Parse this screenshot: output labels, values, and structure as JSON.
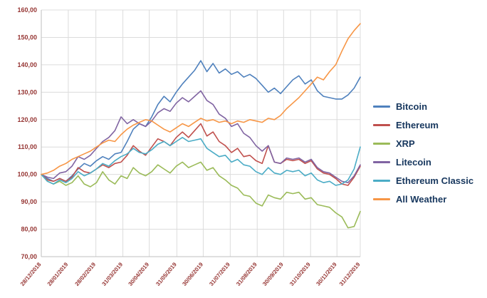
{
  "page": {
    "background": "#ffffff"
  },
  "legend": {
    "position": "right",
    "text_color": "#17375E"
  },
  "chart_data": {
    "type": "line",
    "title": "",
    "xlabel": "",
    "ylabel": "",
    "ylim": [
      70,
      160
    ],
    "grid": true,
    "gridline_color": "#dcdcdc",
    "axis_line_color": "#bfbfbf",
    "axis_label_color": "#963634",
    "legend_position": "right",
    "y_ticks": [
      {
        "value": 70,
        "label": "70,00"
      },
      {
        "value": 80,
        "label": "80,00"
      },
      {
        "value": 90,
        "label": "90,00"
      },
      {
        "value": 100,
        "label": "100,00"
      },
      {
        "value": 110,
        "label": "110,00"
      },
      {
        "value": 120,
        "label": "120,00"
      },
      {
        "value": 130,
        "label": "130,00"
      },
      {
        "value": 140,
        "label": "140,00"
      },
      {
        "value": 150,
        "label": "150,00"
      },
      {
        "value": 160,
        "label": "160,00"
      }
    ],
    "x_ticks": [
      {
        "label": "28/12/2018",
        "pos": 0
      },
      {
        "label": "28/01/2019",
        "pos": 4.4
      },
      {
        "label": "28/02/2019",
        "pos": 8.9
      },
      {
        "label": "31/03/2019",
        "pos": 13.3
      },
      {
        "label": "30/04/2019",
        "pos": 17.6
      },
      {
        "label": "31/05/2019",
        "pos": 22.1
      },
      {
        "label": "30/06/2019",
        "pos": 26.4
      },
      {
        "label": "31/07/2019",
        "pos": 30.8
      },
      {
        "label": "31/08/2019",
        "pos": 35.2
      },
      {
        "label": "30/09/2019",
        "pos": 39.5
      },
      {
        "label": "31/10/2019",
        "pos": 43.9
      },
      {
        "label": "30/11/2019",
        "pos": 48.2
      },
      {
        "label": "31/12/2019",
        "pos": 52
      }
    ],
    "series": [
      {
        "name": "Bitcoin",
        "color": "#4F81BD",
        "values": [
          100,
          98.5,
          97.5,
          98.5,
          97.5,
          99.5,
          102,
          104,
          103,
          105,
          106.5,
          105.5,
          107.5,
          108,
          112,
          116.5,
          118.5,
          117.5,
          121,
          125.5,
          128.5,
          126.5,
          130,
          133,
          135.5,
          138,
          141.5,
          137.5,
          140.5,
          137,
          138.5,
          136.5,
          137.5,
          135.5,
          136.5,
          135,
          132.5,
          130,
          131.5,
          129.5,
          132,
          134.5,
          136,
          133,
          134.5,
          130.5,
          128.5,
          128,
          127.5,
          127.5,
          129,
          131.5,
          135.5
        ]
      },
      {
        "name": "Ethereum",
        "color": "#C0504D",
        "values": [
          100,
          98,
          97.5,
          98.5,
          97.5,
          99,
          102.5,
          101,
          100.5,
          102,
          103.5,
          102.5,
          104,
          104.5,
          107,
          110.5,
          108.5,
          107,
          110,
          113,
          112,
          110.5,
          113.5,
          115.5,
          113.5,
          116,
          118.5,
          114,
          115.5,
          112,
          110.5,
          108,
          109.5,
          106.5,
          107,
          105,
          104,
          110.5,
          104.5,
          104,
          105.5,
          105,
          105.5,
          104,
          105,
          102,
          100.5,
          100,
          98.5,
          96.5,
          96,
          99,
          103
        ]
      },
      {
        "name": "XRP",
        "color": "#9BBB59",
        "values": [
          100,
          97.5,
          96.5,
          97.5,
          96,
          97,
          99.5,
          96.5,
          95.5,
          97,
          101,
          98,
          96.5,
          99.5,
          98.5,
          102.5,
          100.5,
          99.5,
          101,
          103.5,
          102,
          100.5,
          103,
          104.5,
          102.5,
          103.5,
          104.5,
          101.5,
          102.5,
          99.5,
          98,
          96,
          95,
          92.5,
          92,
          89.5,
          88.5,
          92.5,
          91.5,
          91,
          93.5,
          93,
          93.5,
          91,
          91.5,
          89,
          88.5,
          88,
          86,
          84.5,
          80.5,
          81,
          86.5
        ]
      },
      {
        "name": "Litecoin",
        "color": "#8064A2",
        "values": [
          100,
          99,
          98.5,
          100.5,
          101,
          103,
          106.5,
          105.5,
          107,
          109.5,
          112,
          113.5,
          116,
          121,
          118.5,
          120,
          118.5,
          117.5,
          119.5,
          122.5,
          124,
          123,
          126,
          128,
          126.5,
          128.5,
          130.5,
          127,
          125.5,
          122,
          120.5,
          117.5,
          118.5,
          115,
          113.5,
          110.5,
          108.5,
          110.5,
          104.5,
          104,
          106,
          105.5,
          106,
          104.5,
          105.5,
          102.5,
          101,
          100.5,
          99,
          97.5,
          97,
          99.5,
          103.5
        ]
      },
      {
        "name": "Ethereum Classic",
        "color": "#4BACC6",
        "values": [
          100,
          97.5,
          96.5,
          98,
          97,
          98.5,
          101,
          99.5,
          100.5,
          102,
          104,
          103,
          105,
          106.5,
          107.5,
          109.5,
          108,
          107.5,
          109,
          111,
          112,
          110.5,
          112,
          113.5,
          112,
          112.5,
          113,
          109.5,
          108,
          106.5,
          107,
          104.5,
          105.5,
          103.5,
          103,
          101,
          100,
          102.5,
          100.5,
          100,
          101.5,
          101,
          101.5,
          99.5,
          100.5,
          98,
          97,
          97.5,
          96,
          96.5,
          98,
          102,
          110
        ]
      },
      {
        "name": "All Weather",
        "color": "#F79646",
        "values": [
          100,
          100.5,
          101.5,
          103,
          104,
          105.5,
          106.5,
          107.5,
          108.5,
          110,
          111.5,
          112.5,
          112,
          114.5,
          116.5,
          118,
          119,
          120,
          119.5,
          118,
          116.5,
          115.5,
          117,
          118.5,
          117.5,
          119,
          120.5,
          119.5,
          120,
          119,
          119.5,
          118.5,
          119.5,
          119,
          120,
          119.5,
          119,
          120.5,
          120,
          121.5,
          124,
          126,
          128,
          130.5,
          133,
          135.5,
          134.5,
          137.5,
          140,
          145,
          149.5,
          152.5,
          155
        ]
      }
    ]
  }
}
